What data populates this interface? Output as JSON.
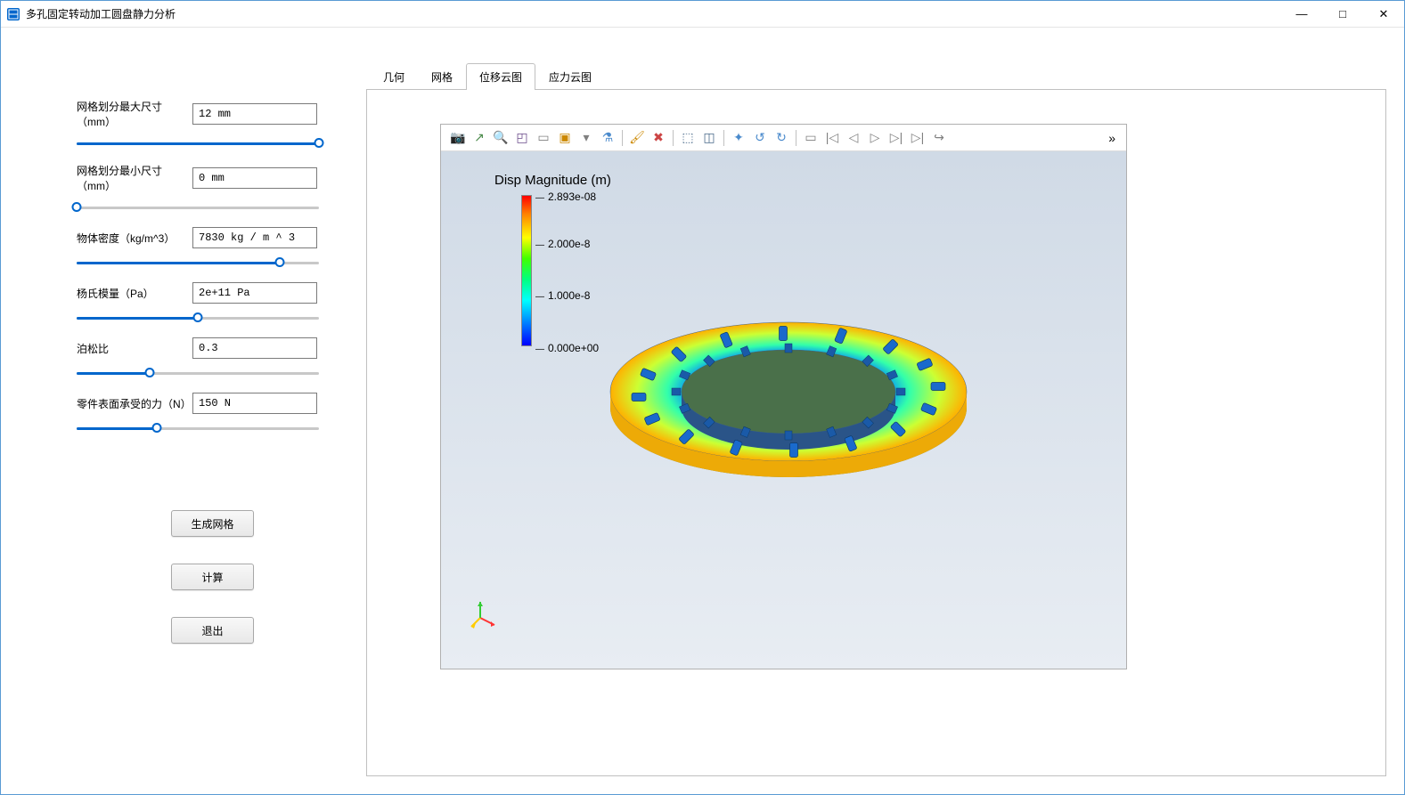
{
  "window": {
    "title": "多孔固定转动加工圆盘静力分析",
    "icon_color": "#0066cc"
  },
  "win_controls": {
    "min": "—",
    "max": "□",
    "close": "✕"
  },
  "params": [
    {
      "label": "网格划分最大尺寸（mm）",
      "value": "12 mm",
      "slider_pct": 100
    },
    {
      "label": "网格划分最小尺寸（mm）",
      "value": "0 mm",
      "slider_pct": 0
    },
    {
      "label": "物体密度（kg/m^3）",
      "value": "7830 kg / m ^ 3",
      "slider_pct": 84
    },
    {
      "label": "杨氏模量（Pa）",
      "value": "2e+11 Pa",
      "slider_pct": 50
    },
    {
      "label": "泊松比",
      "value": "0.3",
      "slider_pct": 30
    },
    {
      "label": "零件表面承受的力（N）",
      "value": "150 N",
      "slider_pct": 33
    }
  ],
  "buttons": {
    "generate_mesh": "生成网格",
    "compute": "计算",
    "exit": "退出"
  },
  "tabs": [
    {
      "label": "几何",
      "active": false
    },
    {
      "label": "网格",
      "active": false
    },
    {
      "label": "位移云图",
      "active": true
    },
    {
      "label": "应力云图",
      "active": false
    }
  ],
  "viz": {
    "toolbar_icons": [
      {
        "name": "camera-icon",
        "glyph": "📷",
        "color": "#4a6a8a"
      },
      {
        "name": "export-icon",
        "glyph": "↗",
        "color": "#4a8a4a",
        "sep_after": false
      },
      {
        "name": "zoom-icon",
        "glyph": "🔍",
        "color": "#6a4a8a"
      },
      {
        "name": "zoom-box-icon",
        "glyph": "◰",
        "color": "#6a4a8a"
      },
      {
        "name": "fit-icon",
        "glyph": "▭",
        "color": "#808080"
      },
      {
        "name": "select-icon",
        "glyph": "▣",
        "color": "#cc8800"
      },
      {
        "name": "select-dropdown-icon",
        "glyph": "▾",
        "color": "#808080"
      },
      {
        "name": "filter-icon",
        "glyph": "⚗",
        "color": "#4a8acc",
        "sep_after": true
      },
      {
        "name": "brush-icon",
        "glyph": "🖌",
        "color": "#cc8800"
      },
      {
        "name": "clear-icon",
        "glyph": "✖",
        "color": "#cc4444",
        "sep_after": true
      },
      {
        "name": "lasso-icon",
        "glyph": "⬚",
        "color": "#4a6a8a"
      },
      {
        "name": "box-select-icon",
        "glyph": "◫",
        "color": "#4a6a8a",
        "sep_after": true
      },
      {
        "name": "rotate-x-icon",
        "glyph": "✦",
        "color": "#4a8acc"
      },
      {
        "name": "rotate-ccw-icon",
        "glyph": "↺",
        "color": "#4a8acc"
      },
      {
        "name": "rotate-cw-icon",
        "glyph": "↻",
        "color": "#4a8acc",
        "sep_after": true
      },
      {
        "name": "record-icon",
        "glyph": "▭",
        "color": "#808080"
      },
      {
        "name": "skip-start-icon",
        "glyph": "|◁",
        "color": "#808080"
      },
      {
        "name": "play-back-icon",
        "glyph": "◁",
        "color": "#808080"
      },
      {
        "name": "play-icon",
        "glyph": "▷",
        "color": "#808080"
      },
      {
        "name": "play-fwd-icon",
        "glyph": "▷|",
        "color": "#808080"
      },
      {
        "name": "skip-end-icon",
        "glyph": "▷|",
        "color": "#808080"
      },
      {
        "name": "loop-icon",
        "glyph": "↪",
        "color": "#808080"
      }
    ],
    "more_glyph": "»",
    "legend": {
      "title": "Disp Magnitude (m)",
      "ticks": [
        {
          "label": "2.893e-08",
          "pos_pct": 0
        },
        {
          "label": "2.000e-8",
          "pos_pct": 31
        },
        {
          "label": "1.000e-8",
          "pos_pct": 65
        },
        {
          "label": "0.000e+00",
          "pos_pct": 100
        }
      ],
      "gradient_colors": [
        "#ff0000",
        "#ff8000",
        "#ffff00",
        "#40ff00",
        "#00ff80",
        "#00ffff",
        "#0080ff",
        "#0000ff"
      ]
    },
    "ring": {
      "outer_rx": 200,
      "outer_ry": 78,
      "inner_rx": 120,
      "inner_ry": 47,
      "thickness": 18,
      "n_tabs": 16,
      "colors": {
        "outer_hot": "#ffb000",
        "outer_warm": "#ccff33",
        "mid": "#33ffaa",
        "inner": "#0088ff",
        "tab_fill": "#1a6acc",
        "side_shadow": "#4a704a"
      }
    },
    "csys": {
      "x_color": "#ff3333",
      "y_color": "#ffcc00",
      "z_color": "#33cc33"
    },
    "background_top": "#d0dae6",
    "background_bottom": "#e8edf3"
  }
}
